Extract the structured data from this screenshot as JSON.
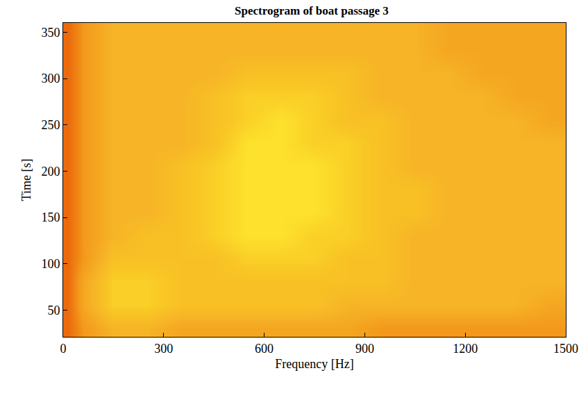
{
  "chart_data": {
    "type": "heatmap",
    "title": "Spectrogram of boat passage 3",
    "x_label": "Frequency [Hz]",
    "y_label": "Time [s]",
    "x": [
      15,
      60,
      150,
      250,
      350,
      450,
      550,
      650,
      750,
      850,
      950,
      1050,
      1150,
      1250,
      1350,
      1450
    ],
    "y": [
      30,
      55,
      80,
      105,
      130,
      155,
      180,
      205,
      230,
      255,
      280,
      305,
      330,
      355
    ],
    "z": [
      [
        1,
        3,
        5,
        5,
        4,
        4,
        4,
        4,
        4,
        4,
        3,
        3,
        3,
        3,
        3,
        3
      ],
      [
        1,
        4,
        7,
        7,
        6,
        6,
        6,
        6,
        6,
        5,
        5,
        5,
        5,
        5,
        5,
        4
      ],
      [
        1,
        4,
        7,
        7,
        6,
        6,
        6,
        6,
        6,
        6,
        6,
        5,
        5,
        5,
        5,
        5
      ],
      [
        1,
        3,
        6,
        6,
        6,
        6,
        7,
        7,
        7,
        6,
        6,
        5,
        5,
        5,
        5,
        5
      ],
      [
        1,
        3,
        5,
        6,
        6,
        7,
        8,
        8,
        7,
        7,
        6,
        5,
        5,
        5,
        5,
        5
      ],
      [
        1,
        3,
        5,
        5,
        6,
        7,
        8,
        8,
        8,
        7,
        6,
        6,
        5,
        5,
        5,
        5
      ],
      [
        1,
        3,
        5,
        5,
        6,
        7,
        8,
        8,
        8,
        7,
        6,
        6,
        5,
        5,
        5,
        5
      ],
      [
        1,
        3,
        5,
        5,
        6,
        7,
        8,
        8,
        8,
        7,
        6,
        5,
        5,
        5,
        5,
        5
      ],
      [
        1,
        3,
        5,
        5,
        5,
        6,
        8,
        8,
        7,
        7,
        6,
        5,
        5,
        5,
        5,
        5
      ],
      [
        1,
        3,
        5,
        5,
        5,
        6,
        7,
        8,
        7,
        6,
        6,
        5,
        5,
        5,
        5,
        4
      ],
      [
        1,
        3,
        5,
        5,
        5,
        6,
        7,
        7,
        7,
        6,
        5,
        5,
        5,
        5,
        4,
        4
      ],
      [
        1,
        3,
        5,
        5,
        5,
        5,
        6,
        6,
        6,
        6,
        5,
        5,
        5,
        4,
        4,
        4
      ],
      [
        1,
        3,
        5,
        5,
        5,
        5,
        5,
        5,
        5,
        5,
        5,
        5,
        4,
        4,
        4,
        4
      ],
      [
        1,
        3,
        5,
        5,
        5,
        5,
        5,
        5,
        5,
        5,
        5,
        5,
        4,
        4,
        4,
        4
      ]
    ],
    "xlim": [
      0,
      1500
    ],
    "ylim": [
      21,
      360
    ],
    "xticks": [
      0,
      300,
      600,
      900,
      1200,
      1500
    ],
    "yticks": [
      50,
      100,
      150,
      200,
      250,
      300,
      350
    ]
  }
}
